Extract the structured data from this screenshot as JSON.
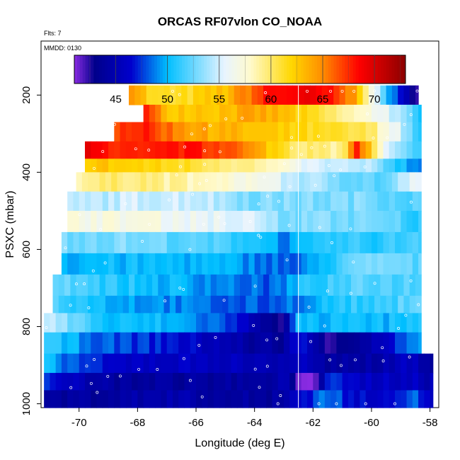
{
  "chart_data": {
    "type": "heatmap",
    "title": "ORCAS RF07vlon CO_NOAA",
    "flts_label": "Flts: 7",
    "mmdd_label": "MMDD: 0130",
    "xlabel": "Longitude (deg E)",
    "ylabel": "PSXC (mbar)",
    "xlim": [
      -71.3,
      -57.7
    ],
    "ylim": [
      1010,
      60
    ],
    "x_ticks": [
      -70,
      -68,
      -66,
      -64,
      -62,
      -60,
      -58
    ],
    "x_tick_labels": [
      "-70",
      "-68",
      "-66",
      "-64",
      "-62",
      "-60",
      "-58"
    ],
    "y_ticks": [
      200,
      400,
      600,
      800,
      1000
    ],
    "y_tick_labels": [
      "200",
      "400",
      "600",
      "800",
      "1000"
    ],
    "colorbar": {
      "range": [
        41,
        73
      ],
      "ticks": [
        45,
        50,
        55,
        60,
        65,
        70
      ],
      "tick_labels": [
        "45",
        "50",
        "55",
        "60",
        "65",
        "70"
      ],
      "stops": [
        {
          "v": 41,
          "c": "#8a2be2"
        },
        {
          "v": 43,
          "c": "#00008b"
        },
        {
          "v": 46.5,
          "c": "#0000cd"
        },
        {
          "v": 50,
          "c": "#00bfff"
        },
        {
          "v": 55.5,
          "c": "#e8f4ff"
        },
        {
          "v": 58,
          "c": "#fffacd"
        },
        {
          "v": 62,
          "c": "#ffd700"
        },
        {
          "v": 65,
          "c": "#ff8c00"
        },
        {
          "v": 68.5,
          "c": "#ff0000"
        },
        {
          "v": 73,
          "c": "#8b0000"
        }
      ]
    },
    "vertical_marker_lon": -62.5,
    "layers": [
      {
        "p_top": 175,
        "p_bot": 225,
        "lon_start": -68.3,
        "lon_end": -58.4,
        "anchors": [
          [
            -68.3,
            66
          ],
          [
            -67.5,
            61
          ],
          [
            -66.5,
            61
          ],
          [
            -65,
            63
          ],
          [
            -63.5,
            68
          ],
          [
            -62.5,
            69
          ],
          [
            -61.5,
            68
          ],
          [
            -60.5,
            64
          ],
          [
            -59.5,
            51
          ],
          [
            -59,
            46
          ],
          [
            -58.5,
            43
          ]
        ]
      },
      {
        "p_top": 225,
        "p_bot": 270,
        "lon_start": -67.8,
        "lon_end": -58.3,
        "anchors": [
          [
            -67.8,
            68
          ],
          [
            -67,
            63
          ],
          [
            -65,
            63
          ],
          [
            -64,
            64
          ],
          [
            -63,
            63
          ],
          [
            -62.5,
            62
          ],
          [
            -61,
            59
          ],
          [
            -59.5,
            56
          ],
          [
            -58.5,
            51
          ]
        ]
      },
      {
        "p_top": 270,
        "p_bot": 320,
        "lon_start": -68.8,
        "lon_end": -58.3,
        "anchors": [
          [
            -68.8,
            67
          ],
          [
            -68,
            68
          ],
          [
            -67,
            66
          ],
          [
            -66,
            64
          ],
          [
            -64.5,
            63
          ],
          [
            -63,
            62
          ],
          [
            -61.5,
            61
          ],
          [
            -60,
            60
          ],
          [
            -59,
            55
          ],
          [
            -58.5,
            51
          ]
        ]
      },
      {
        "p_top": 320,
        "p_bot": 365,
        "lon_start": -69.8,
        "lon_end": -58.3,
        "anchors": [
          [
            -69.8,
            69
          ],
          [
            -69,
            68
          ],
          [
            -68,
            67
          ],
          [
            -66.5,
            68
          ],
          [
            -65,
            67
          ],
          [
            -64,
            64
          ],
          [
            -62.5,
            60
          ],
          [
            -61,
            59
          ],
          [
            -60.5,
            68
          ],
          [
            -59.5,
            55
          ],
          [
            -58.5,
            51
          ]
        ]
      },
      {
        "p_top": 365,
        "p_bot": 400,
        "lon_start": -69.8,
        "lon_end": -58.3,
        "anchors": [
          [
            -69.8,
            63
          ],
          [
            -68,
            62
          ],
          [
            -66,
            61
          ],
          [
            -64,
            59
          ],
          [
            -62,
            55
          ],
          [
            -60,
            54
          ],
          [
            -58.5,
            49
          ]
        ]
      },
      {
        "p_top": 400,
        "p_bot": 450,
        "lon_start": -70.1,
        "lon_end": -58.3,
        "anchors": [
          [
            -70.1,
            59
          ],
          [
            -68,
            60
          ],
          [
            -66,
            58
          ],
          [
            -64,
            57
          ],
          [
            -63,
            55
          ],
          [
            -61,
            53
          ],
          [
            -59.5,
            52
          ],
          [
            -58.5,
            56
          ]
        ]
      },
      {
        "p_top": 450,
        "p_bot": 500,
        "lon_start": -70.4,
        "lon_end": -58.3,
        "anchors": [
          [
            -70.4,
            54
          ],
          [
            -68,
            55
          ],
          [
            -66,
            55
          ],
          [
            -64,
            53
          ],
          [
            -62,
            53
          ],
          [
            -60,
            53
          ],
          [
            -58.5,
            52
          ]
        ]
      },
      {
        "p_top": 500,
        "p_bot": 555,
        "lon_start": -70.4,
        "lon_end": -58.3,
        "anchors": [
          [
            -70.4,
            57
          ],
          [
            -68,
            57
          ],
          [
            -66,
            56
          ],
          [
            -64,
            55
          ],
          [
            -63,
            53
          ],
          [
            -61,
            53
          ],
          [
            -59,
            52
          ],
          [
            -58.5,
            51
          ]
        ]
      },
      {
        "p_top": 555,
        "p_bot": 610,
        "lon_start": -70.6,
        "lon_end": -58.3,
        "anchors": [
          [
            -70.6,
            53
          ],
          [
            -68,
            53
          ],
          [
            -66,
            52
          ],
          [
            -64,
            51
          ],
          [
            -63,
            49
          ],
          [
            -61,
            51
          ],
          [
            -59.5,
            51
          ],
          [
            -58.5,
            52
          ]
        ]
      },
      {
        "p_top": 610,
        "p_bot": 665,
        "lon_start": -70.6,
        "lon_end": -58.3,
        "anchors": [
          [
            -70.6,
            50
          ],
          [
            -68,
            50
          ],
          [
            -66,
            50
          ],
          [
            -64,
            49
          ],
          [
            -62.5,
            48
          ],
          [
            -61,
            52
          ],
          [
            -59.5,
            53
          ],
          [
            -58.5,
            52
          ]
        ]
      },
      {
        "p_top": 665,
        "p_bot": 720,
        "lon_start": -70.9,
        "lon_end": -58.3,
        "anchors": [
          [
            -70.9,
            53
          ],
          [
            -69,
            51
          ],
          [
            -67,
            50
          ],
          [
            -65,
            49
          ],
          [
            -63.5,
            48
          ],
          [
            -62,
            51
          ],
          [
            -60.5,
            52
          ],
          [
            -58.5,
            52
          ]
        ]
      },
      {
        "p_top": 720,
        "p_bot": 765,
        "lon_start": -70.9,
        "lon_end": -58.3,
        "anchors": [
          [
            -70.9,
            52
          ],
          [
            -69,
            50
          ],
          [
            -67,
            49
          ],
          [
            -65,
            48
          ],
          [
            -63.5,
            48
          ],
          [
            -62.5,
            49
          ],
          [
            -61,
            51
          ],
          [
            -59.5,
            51
          ],
          [
            -58.5,
            53
          ]
        ]
      },
      {
        "p_top": 765,
        "p_bot": 815,
        "lon_start": -71.2,
        "lon_end": -58.3,
        "anchors": [
          [
            -71.2,
            55
          ],
          [
            -69,
            50
          ],
          [
            -67,
            50
          ],
          [
            -66,
            49
          ],
          [
            -65,
            48
          ],
          [
            -64,
            45
          ],
          [
            -63,
            43
          ],
          [
            -62.5,
            50
          ],
          [
            -61,
            50
          ],
          [
            -59.5,
            50
          ],
          [
            -58.5,
            51
          ]
        ]
      },
      {
        "p_top": 815,
        "p_bot": 870,
        "lon_start": -71.2,
        "lon_end": -58.3,
        "anchors": [
          [
            -71.2,
            51
          ],
          [
            -69,
            48
          ],
          [
            -67,
            47
          ],
          [
            -66,
            46
          ],
          [
            -65,
            45
          ],
          [
            -64,
            44
          ],
          [
            -63,
            44
          ],
          [
            -62.5,
            47
          ],
          [
            -61.5,
            43
          ],
          [
            -60.5,
            44
          ],
          [
            -59.5,
            46
          ],
          [
            -58.5,
            49
          ]
        ]
      },
      {
        "p_top": 870,
        "p_bot": 920,
        "lon_start": -71.2,
        "lon_end": -57.9,
        "anchors": [
          [
            -71.2,
            50
          ],
          [
            -69,
            46
          ],
          [
            -67,
            46
          ],
          [
            -65.5,
            46
          ],
          [
            -64,
            45
          ],
          [
            -63,
            45
          ],
          [
            -62.5,
            46
          ],
          [
            -61.5,
            44
          ],
          [
            -60.5,
            44
          ],
          [
            -59.5,
            45
          ],
          [
            -58.5,
            46
          ],
          [
            -58,
            44
          ]
        ]
      },
      {
        "p_top": 920,
        "p_bot": 965,
        "lon_start": -71.2,
        "lon_end": -57.9,
        "anchors": [
          [
            -71.2,
            47
          ],
          [
            -69,
            44
          ],
          [
            -67,
            44
          ],
          [
            -65,
            44
          ],
          [
            -63.5,
            44
          ],
          [
            -63,
            45
          ],
          [
            -62.5,
            42
          ],
          [
            -62,
            41
          ],
          [
            -61.5,
            47
          ],
          [
            -60.5,
            46
          ],
          [
            -59.5,
            46
          ],
          [
            -58.5,
            46
          ],
          [
            -58,
            45
          ]
        ]
      },
      {
        "p_top": 965,
        "p_bot": 1010,
        "lon_start": -71.2,
        "lon_end": -57.9,
        "anchors": [
          [
            -71.2,
            44
          ],
          [
            -69,
            44
          ],
          [
            -67,
            45
          ],
          [
            -65,
            44
          ],
          [
            -63.5,
            44
          ],
          [
            -62.5,
            46
          ],
          [
            -61.5,
            49
          ],
          [
            -60.5,
            46
          ],
          [
            -59.5,
            47
          ],
          [
            -58.5,
            48
          ],
          [
            -58,
            46
          ]
        ]
      }
    ]
  }
}
